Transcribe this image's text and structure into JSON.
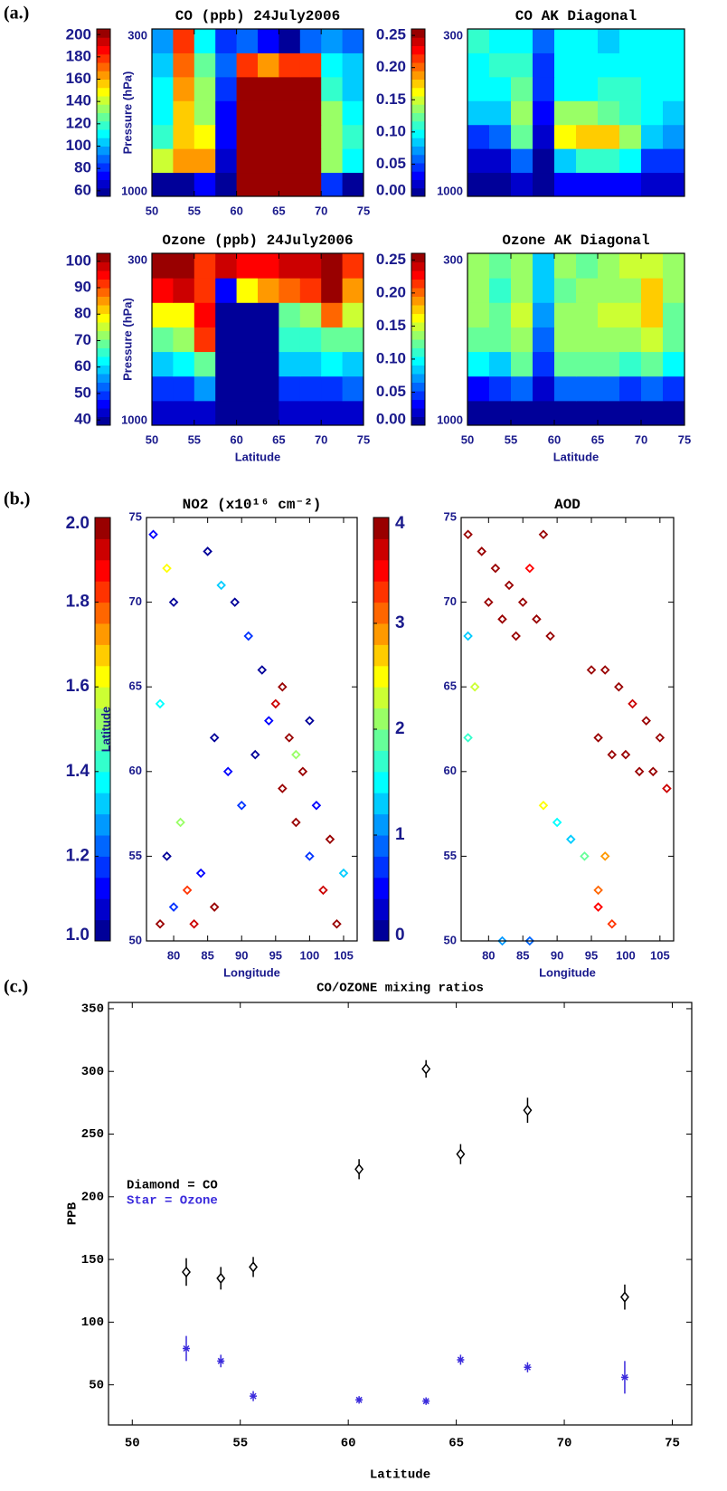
{
  "panel_labels": [
    "(a.)",
    "(b.)",
    "(c.)"
  ],
  "chart_data": [
    {
      "type": "heatmap",
      "title": "CO (ppb)   24July2006",
      "ylabel": "Pressure (hPa)",
      "xlim": [
        50,
        75
      ],
      "ylim": [
        1000,
        300
      ],
      "xticks": [
        50,
        55,
        60,
        65,
        70,
        75
      ],
      "yticks": [
        300,
        1000
      ],
      "xbins": [
        50,
        52.5,
        55,
        57.5,
        60,
        62.5,
        65,
        67.5,
        70,
        72.5,
        75
      ],
      "ybins": [
        1000,
        900,
        800,
        700,
        600,
        500,
        400,
        300
      ],
      "z": [
        [
          60,
          60,
          75,
          60,
          205,
          205,
          205,
          205,
          80,
          60
        ],
        [
          140,
          165,
          165,
          65,
          205,
          205,
          205,
          205,
          135,
          110
        ],
        [
          115,
          155,
          145,
          70,
          205,
          205,
          205,
          205,
          135,
          115
        ],
        [
          110,
          155,
          135,
          75,
          205,
          205,
          205,
          205,
          130,
          110
        ],
        [
          110,
          160,
          130,
          80,
          205,
          205,
          205,
          205,
          120,
          105
        ],
        [
          100,
          170,
          125,
          85,
          175,
          160,
          180,
          180,
          110,
          100
        ],
        [
          95,
          180,
          110,
          80,
          90,
          75,
          60,
          85,
          95,
          90
        ]
      ],
      "clim": [
        55,
        205
      ],
      "cticks": [
        60,
        80,
        100,
        120,
        140,
        160,
        180,
        200
      ]
    },
    {
      "type": "heatmap",
      "title": "CO AK Diagonal",
      "xlim": [
        50,
        75
      ],
      "ylim": [
        1000,
        300
      ],
      "yticks": [
        300,
        1000
      ],
      "xbins": [
        50,
        52.5,
        55,
        57.5,
        60,
        62.5,
        65,
        67.5,
        70,
        72.5,
        75
      ],
      "ybins": [
        1000,
        900,
        800,
        700,
        600,
        500,
        400,
        300
      ],
      "z": [
        [
          0.01,
          0.01,
          0.02,
          0.01,
          0.03,
          0.03,
          0.03,
          0.03,
          0.02,
          0.02
        ],
        [
          0.02,
          0.02,
          0.06,
          0.01,
          0.08,
          0.11,
          0.11,
          0.1,
          0.05,
          0.04
        ],
        [
          0.05,
          0.06,
          0.12,
          0.02,
          0.16,
          0.18,
          0.17,
          0.14,
          0.09,
          0.07
        ],
        [
          0.08,
          0.09,
          0.13,
          0.03,
          0.13,
          0.13,
          0.12,
          0.11,
          0.1,
          0.09
        ],
        [
          0.1,
          0.1,
          0.12,
          0.04,
          0.1,
          0.1,
          0.11,
          0.11,
          0.1,
          0.1
        ],
        [
          0.1,
          0.11,
          0.11,
          0.05,
          0.1,
          0.1,
          0.1,
          0.1,
          0.1,
          0.1
        ],
        [
          0.11,
          0.1,
          0.1,
          0.06,
          0.1,
          0.1,
          0.09,
          0.1,
          0.1,
          0.1
        ]
      ],
      "clim": [
        0,
        0.26
      ],
      "cticks": [
        {
          "value": 0,
          "label": "0.00"
        },
        {
          "value": 0.05,
          "label": "0.05"
        },
        {
          "value": 0.1,
          "label": "0.10"
        },
        {
          "value": 0.15,
          "label": "0.15"
        },
        {
          "value": 0.2,
          "label": "0.20"
        },
        {
          "value": 0.25,
          "label": "0.25"
        }
      ]
    },
    {
      "type": "heatmap",
      "title": "Ozone (ppb)   24July2006",
      "ylabel": "Pressure (hPa)",
      "xlabel": "Latitude",
      "xlim": [
        50,
        75
      ],
      "ylim": [
        1000,
        300
      ],
      "xticks": [
        50,
        55,
        60,
        65,
        70,
        75
      ],
      "yticks": [
        300,
        1000
      ],
      "xbins": [
        50,
        52.5,
        55,
        57.5,
        60,
        62.5,
        65,
        67.5,
        70,
        72.5,
        75
      ],
      "ybins": [
        1000,
        900,
        800,
        700,
        600,
        500,
        400,
        300
      ],
      "z": [
        [
          42,
          42,
          42,
          40,
          40,
          40,
          42,
          42,
          42,
          42
        ],
        [
          50,
          50,
          55,
          40,
          40,
          40,
          48,
          48,
          50,
          52
        ],
        [
          60,
          62,
          70,
          40,
          40,
          40,
          58,
          58,
          62,
          60
        ],
        [
          68,
          72,
          90,
          40,
          40,
          40,
          65,
          65,
          70,
          68
        ],
        [
          78,
          80,
          95,
          40,
          40,
          40,
          70,
          72,
          88,
          75
        ],
        [
          95,
          98,
          90,
          45,
          80,
          85,
          88,
          90,
          100,
          85
        ],
        [
          100,
          102,
          90,
          98,
          95,
          95,
          98,
          98,
          102,
          92
        ]
      ],
      "clim": [
        38,
        103
      ],
      "cticks": [
        40,
        50,
        60,
        70,
        80,
        90,
        100
      ]
    },
    {
      "type": "heatmap",
      "title": "Ozone AK Diagonal",
      "xlabel": "Latitude",
      "xlim": [
        50,
        75
      ],
      "ylim": [
        1000,
        300
      ],
      "xticks": [
        50,
        55,
        60,
        65,
        70,
        75
      ],
      "yticks": [
        300,
        1000
      ],
      "xbins": [
        50,
        52.5,
        55,
        57.5,
        60,
        62.5,
        65,
        67.5,
        70,
        72.5,
        75
      ],
      "ybins": [
        1000,
        900,
        800,
        700,
        600,
        500,
        400,
        300
      ],
      "z": [
        [
          0.01,
          0.01,
          0.01,
          0.01,
          0.01,
          0.01,
          0.01,
          0.01,
          0.01,
          0.01
        ],
        [
          0.03,
          0.04,
          0.06,
          0.02,
          0.06,
          0.06,
          0.06,
          0.05,
          0.06,
          0.05
        ],
        [
          0.1,
          0.09,
          0.12,
          0.05,
          0.12,
          0.12,
          0.12,
          0.11,
          0.12,
          0.1
        ],
        [
          0.12,
          0.12,
          0.14,
          0.06,
          0.13,
          0.14,
          0.14,
          0.14,
          0.15,
          0.12
        ],
        [
          0.13,
          0.12,
          0.15,
          0.07,
          0.13,
          0.14,
          0.15,
          0.15,
          0.17,
          0.12
        ],
        [
          0.13,
          0.11,
          0.14,
          0.08,
          0.12,
          0.13,
          0.14,
          0.14,
          0.17,
          0.13
        ],
        [
          0.14,
          0.12,
          0.13,
          0.09,
          0.13,
          0.12,
          0.13,
          0.15,
          0.15,
          0.13
        ]
      ],
      "clim": [
        0,
        0.26
      ],
      "cticks": [
        {
          "value": 0,
          "label": "0.00"
        },
        {
          "value": 0.05,
          "label": "0.05"
        },
        {
          "value": 0.1,
          "label": "0.10"
        },
        {
          "value": 0.15,
          "label": "0.15"
        },
        {
          "value": 0.2,
          "label": "0.20"
        },
        {
          "value": 0.25,
          "label": "0.25"
        }
      ]
    },
    {
      "type": "colormap-scatter",
      "title": "NO2 (x10¹⁶ cm⁻²)",
      "xlabel": "Longitude",
      "ylabel": "Latitude",
      "xlim": [
        76,
        107
      ],
      "ylim": [
        50,
        75
      ],
      "xticks": [
        80,
        85,
        90,
        95,
        100,
        105
      ],
      "yticks": [
        50,
        55,
        60,
        65,
        70,
        75
      ],
      "x": [
        78,
        80,
        82,
        84,
        86,
        79,
        81,
        83,
        77,
        79,
        85,
        87,
        89,
        91,
        93,
        95,
        97,
        99,
        101,
        103,
        105,
        96,
        98,
        100,
        102,
        104,
        92,
        94,
        96,
        98,
        100,
        88,
        86,
        90,
        78,
        80
      ],
      "y": [
        51,
        52,
        53,
        54,
        52,
        55,
        57,
        51,
        74,
        72,
        73,
        71,
        70,
        68,
        66,
        64,
        62,
        60,
        58,
        56,
        54,
        59,
        57,
        55,
        53,
        51,
        61,
        63,
        65,
        61,
        63,
        60,
        62,
        58,
        64,
        70
      ],
      "values": [
        2.0,
        1.2,
        1.8,
        1.1,
        2.0,
        1.0,
        1.5,
        1.9,
        1.1,
        1.6,
        1.0,
        1.3,
        1.0,
        1.2,
        1.0,
        1.9,
        2.0,
        2.0,
        1.1,
        2.0,
        1.3,
        2.0,
        2.0,
        1.2,
        1.9,
        2.0,
        1.0,
        1.1,
        2.0,
        1.5,
        1.0,
        1.1,
        1.0,
        1.2,
        1.4,
        1.0
      ],
      "clim": [
        1,
        2
      ],
      "cticks": [
        {
          "value": 1,
          "label": "1.0"
        },
        {
          "value": 1.2,
          "label": "1.2"
        },
        {
          "value": 1.4,
          "label": "1.4"
        },
        {
          "value": 1.6,
          "label": "1.6"
        },
        {
          "value": 1.8,
          "label": "1.8"
        },
        {
          "value": 2,
          "label": "2.0"
        }
      ]
    },
    {
      "type": "colormap-scatter",
      "title": "AOD",
      "xlabel": "Longitude",
      "xlim": [
        76,
        107
      ],
      "ylim": [
        50,
        75
      ],
      "xticks": [
        80,
        85,
        90,
        95,
        100,
        105
      ],
      "yticks": [
        50,
        55,
        60,
        65,
        70,
        75
      ],
      "x": [
        77,
        79,
        81,
        83,
        85,
        87,
        89,
        80,
        82,
        84,
        86,
        88,
        95,
        97,
        99,
        101,
        103,
        105,
        96,
        98,
        100,
        102,
        104,
        106,
        88,
        90,
        92,
        94,
        96,
        98,
        77,
        78,
        77,
        82,
        86,
        96,
        97
      ],
      "y": [
        74,
        73,
        72,
        71,
        70,
        69,
        68,
        70,
        69,
        68,
        72,
        74,
        66,
        66,
        65,
        64,
        63,
        62,
        62,
        61,
        61,
        60,
        60,
        59,
        58,
        57,
        56,
        55,
        53,
        51,
        68,
        65,
        62,
        50,
        50,
        52,
        55
      ],
      "values": [
        4,
        4,
        4,
        3.9,
        4,
        4,
        4,
        4,
        4,
        4,
        3.5,
        3.9,
        4,
        4,
        4,
        3.7,
        4,
        3.9,
        4,
        4,
        4,
        3.8,
        4,
        3.6,
        2.5,
        1.5,
        1.2,
        1.8,
        3,
        3.2,
        1.3,
        2.2,
        1.7,
        1.0,
        0.8,
        3.5,
        2.8
      ],
      "clim": [
        0,
        4
      ],
      "cticks": [
        0,
        1,
        2,
        3,
        4
      ]
    },
    {
      "type": "errorbar-scatter",
      "title": "CO/OZONE mixing ratios",
      "xlabel": "Latitude",
      "ylabel": "PPB",
      "xlim": [
        48.9,
        75.9
      ],
      "ylim": [
        18,
        355
      ],
      "xticks": [
        50,
        55,
        60,
        65,
        70,
        75
      ],
      "yticks": [
        50,
        100,
        150,
        200,
        250,
        300,
        350
      ],
      "x": [
        52.5,
        54.1,
        55.6,
        60.5,
        63.6,
        65.2,
        68.3,
        72.8
      ],
      "series": [
        {
          "name": "Diamond = CO",
          "color": "#000000",
          "marker": "diamond",
          "values": [
            140,
            135,
            144,
            222,
            302,
            234,
            269,
            120
          ],
          "errors": [
            11,
            9,
            8,
            8,
            7,
            8,
            10,
            10
          ]
        },
        {
          "name": "Star = Ozone",
          "color": "#3b2bdc",
          "marker": "star",
          "values": [
            79,
            69,
            41,
            38,
            37,
            70,
            64,
            56
          ],
          "errors": [
            10,
            5,
            4,
            3,
            3,
            4,
            4,
            13
          ]
        }
      ]
    }
  ]
}
